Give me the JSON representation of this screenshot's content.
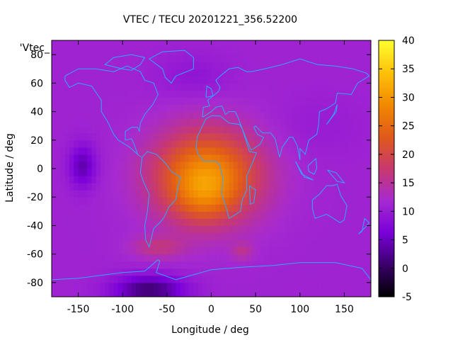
{
  "chart_data": {
    "type": "heatmap",
    "title": "VTEC / TECU 20201221_356.52200",
    "xlabel": "Longitude / deg",
    "ylabel": "Latitude / deg",
    "xlim": [
      -180,
      180
    ],
    "ylim": [
      -90,
      90
    ],
    "x_ticks": [
      -150,
      -100,
      -50,
      0,
      50,
      100,
      150
    ],
    "y_ticks": [
      -80,
      -60,
      -40,
      -20,
      0,
      20,
      40,
      60,
      80
    ],
    "colorbar": {
      "range": [
        -5,
        40
      ],
      "ticks": [
        -5,
        0,
        5,
        10,
        15,
        20,
        25,
        30,
        35,
        40
      ],
      "palette": [
        "#000000",
        "#3a006b",
        "#7a00d9",
        "#a62ad0",
        "#c8396e",
        "#e05a1a",
        "#f28a00",
        "#fdc20a",
        "#ffff30"
      ]
    },
    "legend_label": "'Vtec_",
    "grid": false,
    "field": {
      "background": 11,
      "features": [
        {
          "lon": -5,
          "lat": -5,
          "amp": 18,
          "sig_lon": 60,
          "sig_lat": 32
        },
        {
          "lon": -10,
          "lat": -20,
          "amp": 4,
          "sig_lon": 30,
          "sig_lat": 18
        },
        {
          "lon": -60,
          "lat": -55,
          "amp": 5,
          "sig_lon": 30,
          "sig_lat": 8
        },
        {
          "lon": 35,
          "lat": -58,
          "amp": 4,
          "sig_lon": 12,
          "sig_lat": 6
        },
        {
          "lon": -145,
          "lat": 2,
          "amp": -7,
          "sig_lon": 15,
          "sig_lat": 15
        },
        {
          "lon": -70,
          "lat": -85,
          "amp": -10,
          "sig_lon": 40,
          "sig_lat": 10
        },
        {
          "lon": -20,
          "lat": 65,
          "amp": -2,
          "sig_lon": 40,
          "sig_lat": 15
        },
        {
          "lon": 120,
          "lat": 30,
          "amp": -1,
          "sig_lon": 50,
          "sig_lat": 20
        }
      ]
    },
    "coastline_color": "#2fa8ff"
  }
}
